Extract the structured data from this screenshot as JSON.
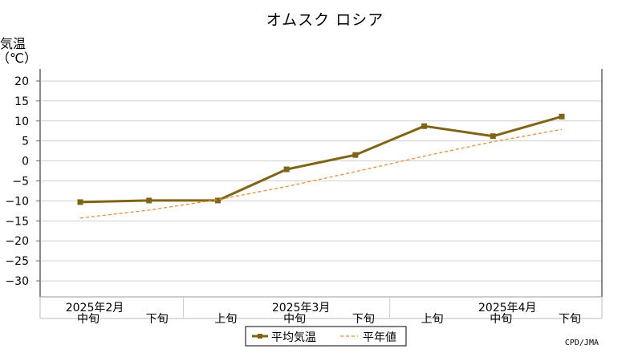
{
  "chart_data": {
    "type": "line",
    "title": "オムスク ロシア",
    "ylabel": "気温",
    "yunit": "（℃）",
    "ylim": [
      -34,
      23
    ],
    "yticks": [
      20,
      15,
      10,
      5,
      0,
      -5,
      -10,
      -15,
      -20,
      -25,
      -30
    ],
    "ytick_labels": [
      "20",
      "15",
      "10",
      "5",
      "0",
      "−5",
      "−10",
      "−15",
      "−20",
      "−25",
      "−30"
    ],
    "categories": [
      "中旬",
      "下旬",
      "上旬",
      "中旬",
      "下旬",
      "上旬",
      "中旬",
      "下旬"
    ],
    "month_labels": [
      {
        "label": "2025年2月",
        "category_index": 0
      },
      {
        "label": "2025年3月",
        "category_index": 3
      },
      {
        "label": "2025年4月",
        "category_index": 6
      }
    ],
    "series": [
      {
        "name": "平均気温",
        "color": "#7f6415",
        "style": "solid-marker",
        "values": [
          -10.3,
          -9.9,
          -9.9,
          -2.1,
          1.5,
          8.7,
          6.2,
          11.1
        ]
      },
      {
        "name": "平年値",
        "color": "#f08a2a",
        "style": "dashed",
        "values": [
          -14.3,
          -12.3,
          -9.7,
          -6.4,
          -2.7,
          1.2,
          4.8,
          7.9
        ]
      }
    ],
    "grid": true,
    "legend": "bottom-center"
  },
  "footer": {
    "credit": "CPD/JMA"
  }
}
